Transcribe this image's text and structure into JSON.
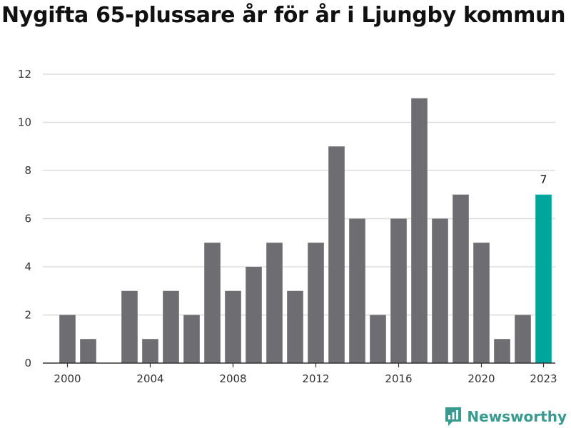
{
  "title": "Nygifta 65-plussare år för år i Ljungby kommun",
  "brand": {
    "name": "Newsworthy",
    "icon": "newsworthy-logo-icon",
    "color": "#3a9a8f"
  },
  "colors": {
    "bar": "#6e6d72",
    "highlight": "#00a69c",
    "grid": "#dddddd",
    "axis": "#333333"
  },
  "chart_data": {
    "type": "bar",
    "title": "Nygifta 65-plussare år för år i Ljungby kommun",
    "xlabel": "",
    "ylabel": "",
    "categories": [
      2000,
      2001,
      2002,
      2003,
      2004,
      2005,
      2006,
      2007,
      2008,
      2009,
      2010,
      2011,
      2012,
      2013,
      2014,
      2015,
      2016,
      2017,
      2018,
      2019,
      2020,
      2021,
      2022,
      2023
    ],
    "values": [
      2,
      1,
      0,
      3,
      1,
      3,
      2,
      5,
      3,
      4,
      5,
      3,
      5,
      9,
      6,
      2,
      6,
      11,
      6,
      7,
      5,
      1,
      2,
      7
    ],
    "x_tick_labels": [
      "2000",
      "2004",
      "2008",
      "2012",
      "2016",
      "2020",
      "2023"
    ],
    "y_ticks": [
      0,
      2,
      4,
      6,
      8,
      10,
      12
    ],
    "ylim": [
      0,
      12
    ],
    "grid": true,
    "legend": "none",
    "highlight": {
      "category": 2023,
      "label": "7"
    }
  }
}
